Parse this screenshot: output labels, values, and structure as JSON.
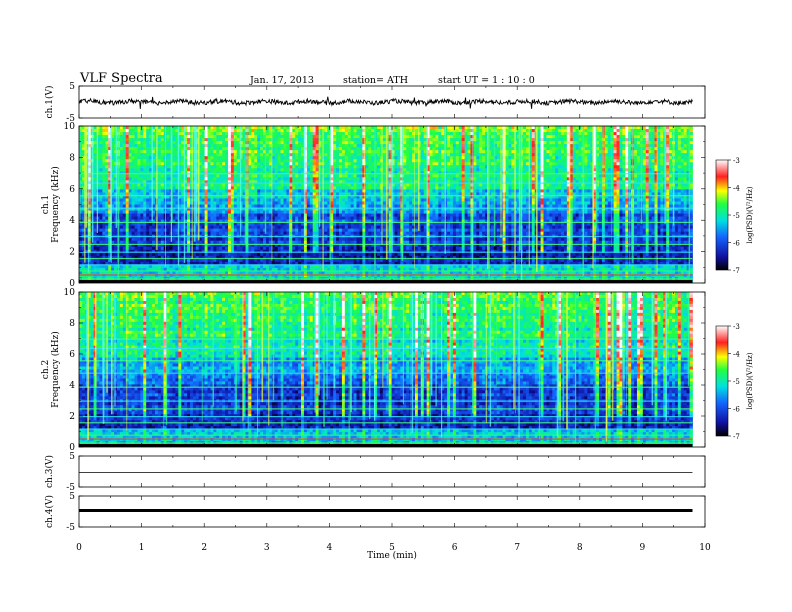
{
  "header": {
    "title": "VLF  Spectra",
    "date": "Jan. 17, 2013",
    "station": "station= ATH",
    "start": "start  UT  =   1  : 10 : 0"
  },
  "chart_data": [
    {
      "type": "line",
      "ylabel": "ch.1(V)",
      "ylim": [
        -5,
        5
      ],
      "yticks": [
        "5",
        "-5"
      ],
      "xlim": [
        0,
        10
      ],
      "description_level": 0.0
    },
    {
      "type": "heatmap",
      "ylabel_line1": "ch.1",
      "ylabel_line2": "Frequency  (kHz)",
      "ylim": [
        0,
        10
      ],
      "yticks": [
        "0",
        "2",
        "4",
        "6",
        "8",
        "10"
      ],
      "xlim": [
        0,
        10
      ],
      "data_end_min": 9.8,
      "colorbar": {
        "label": "log(PSD)(V²/Hz)",
        "range": [
          -7,
          -3
        ],
        "ticks": [
          "-3",
          "-4",
          "-5",
          "-6",
          "-7"
        ]
      }
    },
    {
      "type": "heatmap",
      "ylabel_line1": "ch.2",
      "ylabel_line2": "Frequency  (kHz)",
      "ylim": [
        0,
        10
      ],
      "yticks": [
        "0",
        "2",
        "4",
        "6",
        "8",
        "10"
      ],
      "xlim": [
        0,
        10
      ],
      "data_end_min": 9.8,
      "colorbar": {
        "label": "log(PSD)(V²/Hz)",
        "range": [
          -7,
          -3
        ],
        "ticks": [
          "-3",
          "-4",
          "-5",
          "-6",
          "-7"
        ]
      }
    },
    {
      "type": "line",
      "ylabel": "ch.3(V)",
      "ylim": [
        -5,
        5
      ],
      "yticks": [
        "5",
        "-5"
      ],
      "xlim": [
        0,
        10
      ]
    },
    {
      "type": "line",
      "ylabel": "ch.4(V)",
      "ylim": [
        -5,
        5
      ],
      "yticks": [
        "5",
        "-5"
      ],
      "xlim": [
        0,
        10
      ]
    }
  ],
  "xaxis": {
    "label": "Time  (min)",
    "ticks": [
      "0",
      "1",
      "2",
      "3",
      "4",
      "5",
      "6",
      "7",
      "8",
      "9",
      "10"
    ]
  }
}
